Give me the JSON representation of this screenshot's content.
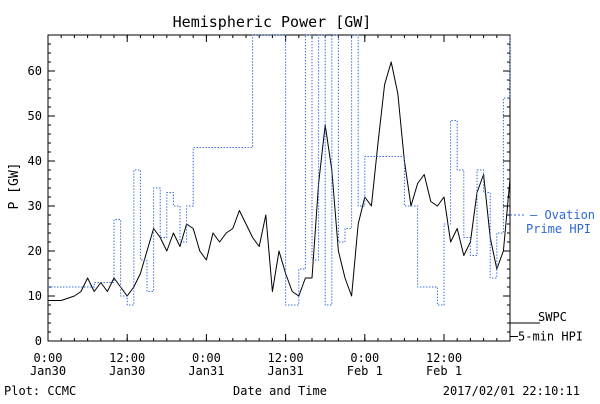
{
  "chart_data": {
    "type": "line",
    "title": "Hemispheric Power [GW]",
    "xlabel": "Date and Time",
    "ylabel": "P [GW]",
    "ylim": [
      0,
      68
    ],
    "xlim": [
      "2017-01-30T00:00",
      "2017-02-01T22:00"
    ],
    "y_ticks": [
      0,
      10,
      20,
      30,
      40,
      50,
      60
    ],
    "x_ticks": [
      {
        "t": "2017-01-30T00:00",
        "line1": "0:00",
        "line2": "Jan30"
      },
      {
        "t": "2017-01-30T12:00",
        "line1": "12:00",
        "line2": "Jan30"
      },
      {
        "t": "2017-01-31T00:00",
        "line1": "0:00",
        "line2": "Jan31"
      },
      {
        "t": "2017-01-31T12:00",
        "line1": "12:00",
        "line2": "Jan31"
      },
      {
        "t": "2017-02-01T00:00",
        "line1": "0:00",
        "line2": "Feb 1"
      },
      {
        "t": "2017-02-01T12:00",
        "line1": "12:00",
        "line2": "Feb 1"
      }
    ],
    "grid": false,
    "legend_position": "right",
    "series": [
      {
        "name": "SWPC 5-min HPI",
        "legend_lines": [
          "SWPC",
          "5-min HPI"
        ],
        "color": "#000000",
        "style": "solid",
        "x": [
          "2017-01-30T00:00",
          "2017-01-30T02:00",
          "2017-01-30T04:00",
          "2017-01-30T05:00",
          "2017-01-30T06:00",
          "2017-01-30T07:00",
          "2017-01-30T08:00",
          "2017-01-30T09:00",
          "2017-01-30T10:00",
          "2017-01-30T11:00",
          "2017-01-30T12:00",
          "2017-01-30T13:00",
          "2017-01-30T14:00",
          "2017-01-30T15:00",
          "2017-01-30T16:00",
          "2017-01-30T17:00",
          "2017-01-30T18:00",
          "2017-01-30T19:00",
          "2017-01-30T20:00",
          "2017-01-30T21:00",
          "2017-01-30T22:00",
          "2017-01-30T23:00",
          "2017-01-31T00:00",
          "2017-01-31T01:00",
          "2017-01-31T02:00",
          "2017-01-31T03:00",
          "2017-01-31T04:00",
          "2017-01-31T05:00",
          "2017-01-31T06:00",
          "2017-01-31T07:00",
          "2017-01-31T08:00",
          "2017-01-31T09:00",
          "2017-01-31T10:00",
          "2017-01-31T11:00",
          "2017-01-31T12:00",
          "2017-01-31T13:00",
          "2017-01-31T14:00",
          "2017-01-31T15:00",
          "2017-01-31T16:00",
          "2017-01-31T17:00",
          "2017-01-31T18:00",
          "2017-01-31T19:00",
          "2017-01-31T20:00",
          "2017-01-31T21:00",
          "2017-01-31T22:00",
          "2017-01-31T23:00",
          "2017-02-01T00:00",
          "2017-02-01T01:00",
          "2017-02-01T02:00",
          "2017-02-01T03:00",
          "2017-02-01T04:00",
          "2017-02-01T05:00",
          "2017-02-01T06:00",
          "2017-02-01T07:00",
          "2017-02-01T08:00",
          "2017-02-01T09:00",
          "2017-02-01T10:00",
          "2017-02-01T11:00",
          "2017-02-01T12:00",
          "2017-02-01T13:00",
          "2017-02-01T14:00",
          "2017-02-01T15:00",
          "2017-02-01T16:00",
          "2017-02-01T17:00",
          "2017-02-01T18:00",
          "2017-02-01T19:00",
          "2017-02-01T20:00",
          "2017-02-01T21:00",
          "2017-02-01T22:00"
        ],
        "y": [
          9,
          9,
          10,
          11,
          14,
          11,
          13,
          11,
          14,
          12,
          10,
          12,
          15,
          20,
          25,
          23,
          20,
          24,
          21,
          26,
          25,
          20,
          18,
          24,
          22,
          24,
          25,
          29,
          26,
          23,
          21,
          28,
          11,
          20,
          15,
          11,
          10,
          14,
          14,
          35,
          48,
          38,
          20,
          14,
          10,
          26,
          32,
          30,
          44,
          57,
          62,
          55,
          40,
          30,
          35,
          37,
          31,
          30,
          32,
          22,
          25,
          19,
          22,
          33,
          37,
          23,
          16,
          20,
          36
        ]
      },
      {
        "name": "Ovation Prime HPI",
        "legend_lines": [
          "Ovation",
          "Prime HPI"
        ],
        "color": "#2f67d8",
        "style": "dotted",
        "x": [
          "2017-01-30T00:00",
          "2017-01-30T04:00",
          "2017-01-30T07:00",
          "2017-01-30T10:00",
          "2017-01-30T11:00",
          "2017-01-30T12:00",
          "2017-01-30T13:00",
          "2017-01-30T14:00",
          "2017-01-30T15:00",
          "2017-01-30T16:00",
          "2017-01-30T17:00",
          "2017-01-30T18:00",
          "2017-01-30T19:00",
          "2017-01-30T20:00",
          "2017-01-30T21:00",
          "2017-01-30T22:00",
          "2017-01-31T02:00",
          "2017-01-31T07:00",
          "2017-01-31T08:00",
          "2017-01-31T09:00",
          "2017-01-31T10:00",
          "2017-01-31T11:00",
          "2017-01-31T12:00",
          "2017-01-31T14:00",
          "2017-01-31T15:00",
          "2017-01-31T16:00",
          "2017-01-31T17:00",
          "2017-01-31T18:00",
          "2017-01-31T19:00",
          "2017-01-31T20:00",
          "2017-01-31T21:00",
          "2017-01-31T22:00",
          "2017-01-31T23:00",
          "2017-02-01T00:00",
          "2017-02-01T03:00",
          "2017-02-01T06:00",
          "2017-02-01T08:00",
          "2017-02-01T10:00",
          "2017-02-01T11:00",
          "2017-02-01T12:00",
          "2017-02-01T13:00",
          "2017-02-01T14:00",
          "2017-02-01T15:00",
          "2017-02-01T16:00",
          "2017-02-01T17:00",
          "2017-02-01T18:00",
          "2017-02-01T19:00",
          "2017-02-01T20:00",
          "2017-02-01T21:00",
          "2017-02-01T22:00"
        ],
        "y": [
          12,
          12,
          13,
          27,
          10,
          8,
          38,
          18,
          11,
          34,
          23,
          33,
          30,
          22,
          30,
          43,
          43,
          68,
          68,
          68,
          68,
          68,
          8,
          16,
          68,
          18,
          68,
          8,
          68,
          22,
          25,
          68,
          30,
          41,
          41,
          30,
          12,
          12,
          8,
          26,
          49,
          38,
          23,
          19,
          38,
          33,
          14,
          24,
          54,
          68
        ]
      }
    ]
  },
  "footer": {
    "plot_credit": "Plot: CCMC",
    "timestamp": "2017/02/01 22:10:11"
  }
}
